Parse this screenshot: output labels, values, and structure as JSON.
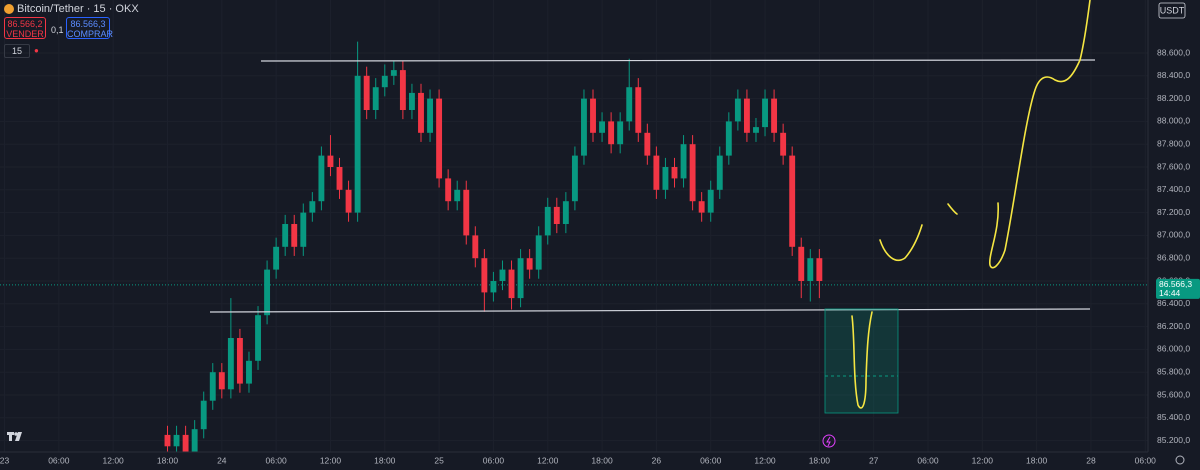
{
  "header": {
    "symbol": "Bitcoin/Tether · 15 · OKX",
    "sell_price": "86.566,2",
    "sell_label": "VENDER",
    "spread": "0,1",
    "buy_price": "86.566,3",
    "buy_label": "COMPRAR",
    "interval": "15"
  },
  "chart_data": {
    "type": "candlestick",
    "currency": "USDT",
    "x": [
      18,
      19,
      20,
      21,
      22,
      23,
      24,
      25,
      26,
      27,
      28,
      29,
      30,
      31,
      32,
      33,
      34,
      35,
      36,
      37,
      38,
      39,
      40,
      41,
      42,
      43,
      44,
      45,
      46,
      47,
      48,
      49,
      50,
      51,
      52,
      53,
      54,
      55,
      56,
      57,
      58,
      59,
      60,
      61,
      62,
      63,
      64,
      65,
      66,
      67,
      68,
      69,
      70,
      71,
      72,
      73,
      74,
      75,
      76,
      77,
      78,
      79,
      80,
      81,
      82,
      83,
      84,
      85,
      86,
      87,
      88,
      89,
      90
    ],
    "open": [
      85250,
      85150,
      85250,
      85100,
      85300,
      85550,
      85800,
      85650,
      86100,
      85700,
      85900,
      86300,
      86700,
      86900,
      87100,
      86900,
      87200,
      87300,
      87700,
      87600,
      87400,
      87200,
      88400,
      88100,
      88300,
      88400,
      88450,
      88100,
      88250,
      87900,
      88200,
      87500,
      87300,
      87400,
      87000,
      86800,
      86500,
      86600,
      86700,
      86450,
      86800,
      86700,
      87000,
      87250,
      87100,
      87300,
      87700,
      88200,
      87900,
      88000,
      87800,
      88000,
      88300,
      87900,
      87700,
      87400,
      87600,
      87500,
      87800,
      87300,
      87200,
      87400,
      87700,
      88000,
      88200,
      87900,
      87950,
      88200,
      87900,
      87700,
      86900,
      86600,
      86800
    ],
    "high": [
      85330,
      85330,
      85330,
      85380,
      85630,
      85880,
      85880,
      86450,
      86180,
      85980,
      86380,
      86780,
      86980,
      87180,
      87180,
      87280,
      87380,
      87780,
      87880,
      87680,
      87480,
      88700,
      88480,
      88380,
      88500,
      88530,
      88530,
      88330,
      88330,
      88280,
      88280,
      87580,
      87480,
      87480,
      87080,
      86880,
      86680,
      86780,
      86780,
      86880,
      86880,
      87080,
      87330,
      87330,
      87380,
      87780,
      88280,
      88280,
      88080,
      88080,
      88080,
      88550,
      88380,
      87980,
      87780,
      87680,
      87680,
      87880,
      87880,
      87380,
      87480,
      87780,
      88080,
      88280,
      88280,
      88030,
      88280,
      88280,
      87980,
      87780,
      86980,
      86880,
      86880
    ],
    "low": [
      85070,
      85070,
      85020,
      85020,
      85220,
      85470,
      85570,
      85570,
      85620,
      85620,
      85820,
      86220,
      86620,
      86820,
      86820,
      86820,
      87120,
      87220,
      87520,
      87320,
      87120,
      87120,
      88020,
      88020,
      88220,
      88320,
      88020,
      88020,
      87820,
      87820,
      87420,
      87220,
      87220,
      86920,
      86720,
      86330,
      86420,
      86520,
      86350,
      86370,
      86620,
      86620,
      86920,
      87020,
      87020,
      87220,
      87620,
      87820,
      87820,
      87720,
      87720,
      87920,
      87820,
      87620,
      87320,
      87320,
      87420,
      87420,
      87220,
      87120,
      87120,
      87320,
      87620,
      87920,
      87820,
      87820,
      87870,
      87820,
      87620,
      86820,
      86450,
      86420,
      86450
    ],
    "close": [
      85150,
      85250,
      85100,
      85300,
      85550,
      85800,
      85650,
      86100,
      85700,
      85900,
      86300,
      86700,
      86900,
      87100,
      86900,
      87200,
      87300,
      87700,
      87600,
      87400,
      87200,
      88400,
      88100,
      88300,
      88400,
      88450,
      88100,
      88250,
      87900,
      88200,
      87500,
      87300,
      87400,
      87000,
      86800,
      86500,
      86600,
      86700,
      86450,
      86800,
      86700,
      87000,
      87250,
      87100,
      87300,
      87700,
      88200,
      87900,
      88000,
      87800,
      88000,
      88300,
      87900,
      87700,
      87400,
      87600,
      87500,
      87800,
      87300,
      87200,
      87400,
      87700,
      88000,
      88200,
      87900,
      87950,
      88200,
      87900,
      87700,
      86900,
      86600,
      86800,
      86600
    ],
    "up_color": "#089981",
    "down_color": "#f23645",
    "xlim": [
      -0.5,
      126.3
    ],
    "xticks": [
      {
        "value": 0,
        "label": "23"
      },
      {
        "value": 6,
        "label": "06:00"
      },
      {
        "value": 12,
        "label": "12:00"
      },
      {
        "value": 18,
        "label": "18:00"
      },
      24,
      {
        "value": 30,
        "label": "06:00"
      },
      {
        "value": 36,
        "label": "12:00"
      },
      {
        "value": 42,
        "label": "18:00"
      },
      {
        "value": 48,
        "label": "25"
      },
      {
        "value": 54,
        "label": "06:00"
      },
      {
        "value": 60,
        "label": "12:00"
      },
      {
        "value": 66,
        "label": "18:00"
      },
      {
        "value": 72,
        "label": "26"
      },
      {
        "value": 78,
        "label": "06:00"
      },
      {
        "value": 84,
        "label": "12:00"
      },
      {
        "value": 90,
        "label": "18:00"
      },
      {
        "value": 96,
        "label": "27"
      },
      {
        "value": 102,
        "label": "06:00"
      },
      {
        "value": 108,
        "label": "12:00"
      },
      {
        "value": 114,
        "label": "18:00"
      },
      {
        "value": 120,
        "label": "28"
      },
      {
        "value": 126,
        "label": "06:00"
      }
    ],
    "ylim": [
      85100,
      89065
    ],
    "yticks": [
      {
        "value": 85200,
        "label": "85.200,0"
      },
      {
        "value": 85400,
        "label": "85.400,0"
      },
      {
        "value": 85600,
        "label": "85.600,0"
      },
      {
        "value": 85800,
        "label": "85.800,0"
      },
      {
        "value": 86000,
        "label": "86.000,0"
      },
      {
        "value": 86200,
        "label": "86.200,0"
      },
      {
        "value": 86400,
        "label": "86.400,0"
      },
      {
        "value": 86600,
        "label": "86.600,0"
      },
      {
        "value": 86800,
        "label": "86.800,0"
      },
      {
        "value": 87000,
        "label": "87.000,0"
      },
      {
        "value": 87200,
        "label": "87.200,0"
      },
      {
        "value": 87400,
        "label": "87.400,0"
      },
      {
        "value": 87600,
        "label": "87.600,0"
      },
      {
        "value": 87800,
        "label": "87.800,0"
      },
      {
        "value": 88000,
        "label": "88.000,0"
      },
      {
        "value": 88200,
        "label": "88.200,0"
      },
      {
        "value": 88400,
        "label": "88.400,0"
      },
      {
        "value": 88600,
        "label": "88.600,0"
      }
    ],
    "grid": true,
    "last_price": {
      "value": 86566.3,
      "label": "86.566,3"
    },
    "countdown": "14:44"
  }
}
